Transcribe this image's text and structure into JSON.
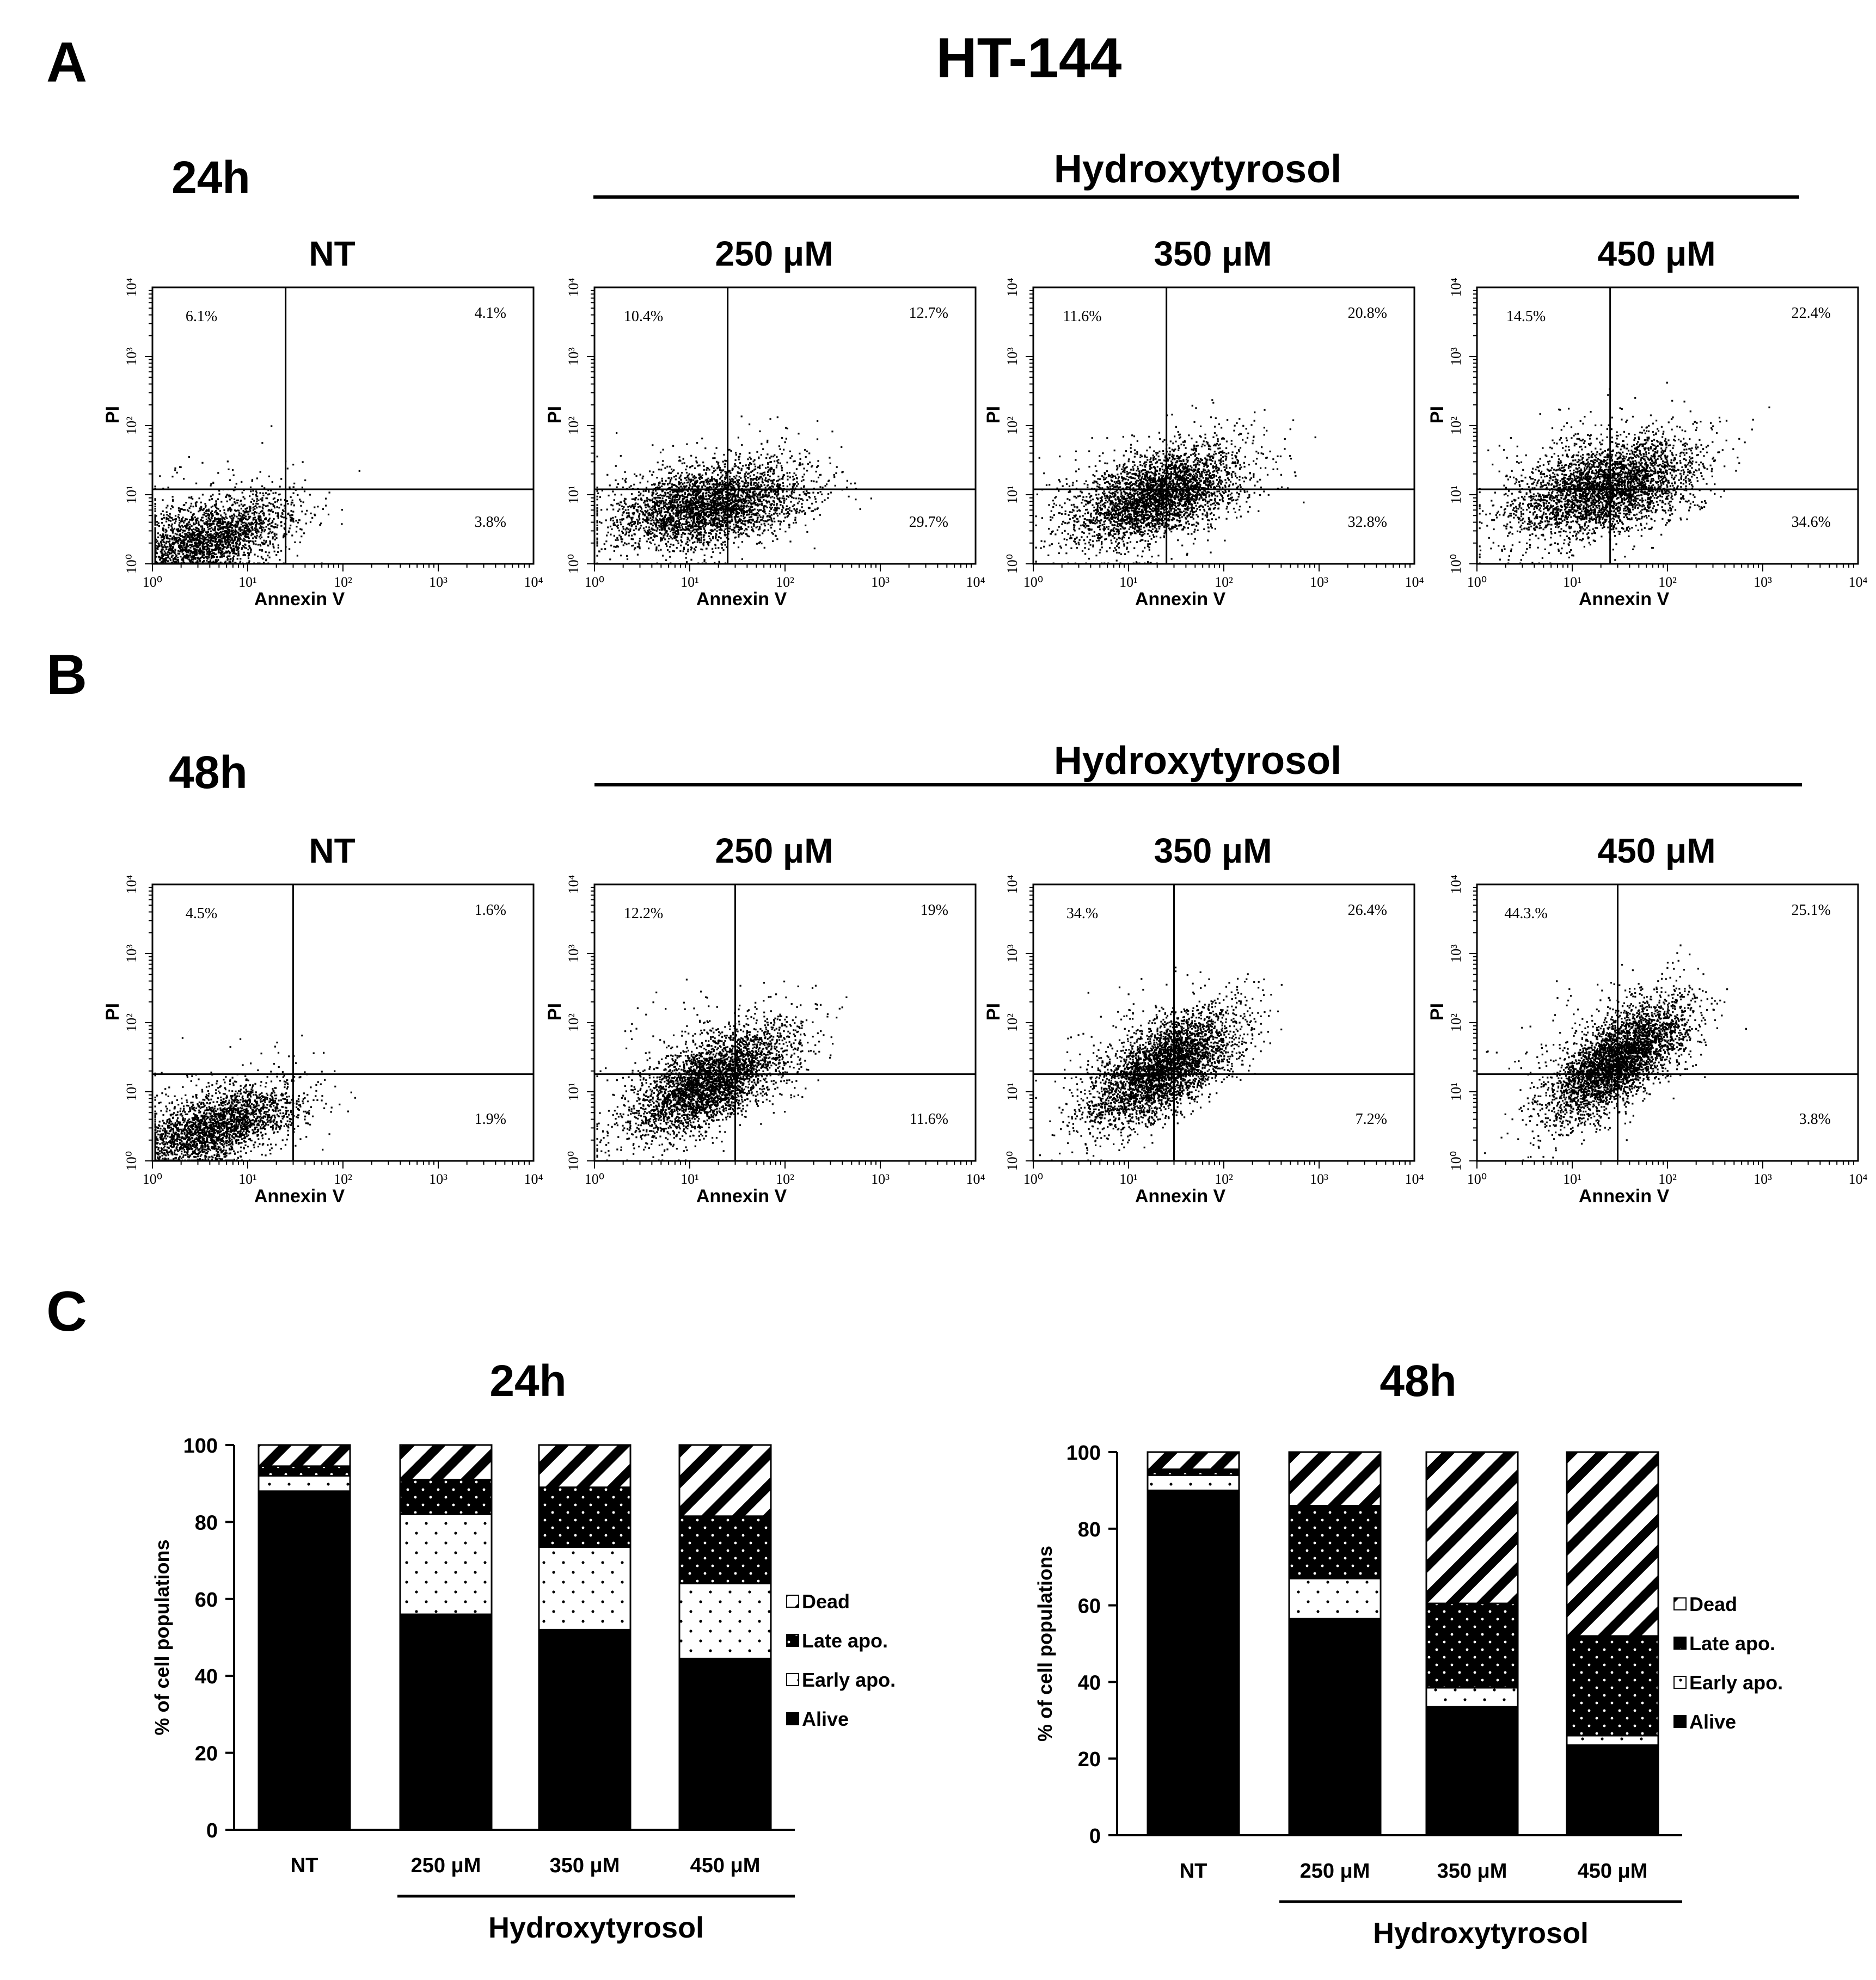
{
  "figure": {
    "title": "HT-144",
    "panels": {
      "a": "A",
      "b": "B",
      "c": "C"
    }
  },
  "flow": {
    "rows": [
      {
        "time": "24h",
        "treatment": "Hydroxytyrosol"
      },
      {
        "time": "48h",
        "treatment": "Hydroxytyrosol"
      }
    ]
  },
  "colors": {
    "ink": "#000000",
    "paper": "#ffffff"
  },
  "chart_data": [
    {
      "type": "scatter",
      "panel": "A",
      "time": "24h",
      "title": "NT",
      "xlabel": "Annexin V",
      "ylabel": "PI",
      "scale": "log",
      "xlim": [
        1,
        10000
      ],
      "ylim": [
        1,
        10000
      ],
      "xticks": [
        "10⁰",
        "10¹",
        "10²",
        "10³",
        "10⁴"
      ],
      "yticks": [
        "10⁰",
        "10¹",
        "10²",
        "10³",
        "10⁴"
      ],
      "gate": {
        "x": 25,
        "y": 12
      },
      "quadrants": {
        "ul": "6.1%",
        "ur": "4.1%",
        "lr": "3.8%"
      },
      "cloud": {
        "points": 2600,
        "cx": 0.55,
        "cy": 0.35,
        "sx": 0.45,
        "sy": 0.32,
        "rho": 0.55
      }
    },
    {
      "type": "scatter",
      "panel": "A",
      "time": "24h",
      "title": "250 μM",
      "xlabel": "Annexin V",
      "ylabel": "PI",
      "scale": "log",
      "xlim": [
        1,
        10000
      ],
      "ylim": [
        1,
        10000
      ],
      "xticks": [
        "10⁰",
        "10¹",
        "10²",
        "10³",
        "10⁴"
      ],
      "yticks": [
        "10⁰",
        "10¹",
        "10²",
        "10³",
        "10⁴"
      ],
      "gate": {
        "x": 25,
        "y": 12
      },
      "quadrants": {
        "ul": "10.4%",
        "ur": "12.7%",
        "lr": "29.7%"
      },
      "cloud": {
        "points": 3400,
        "cx": 1.2,
        "cy": 0.85,
        "sx": 0.5,
        "sy": 0.3,
        "rho": 0.35
      }
    },
    {
      "type": "scatter",
      "panel": "A",
      "time": "24h",
      "title": "350 μM",
      "xlabel": "Annexin V",
      "ylabel": "PI",
      "scale": "log",
      "xlim": [
        1,
        10000
      ],
      "ylim": [
        1,
        10000
      ],
      "xticks": [
        "10⁰",
        "10¹",
        "10²",
        "10³",
        "10⁴"
      ],
      "yticks": [
        "10⁰",
        "10¹",
        "10²",
        "10³",
        "10⁴"
      ],
      "gate": {
        "x": 25,
        "y": 12
      },
      "quadrants": {
        "ul": "11.6%",
        "ur": "20.8%",
        "lr": "32.8%"
      },
      "cloud": {
        "points": 3500,
        "cx": 1.3,
        "cy": 1.0,
        "sx": 0.45,
        "sy": 0.35,
        "rho": 0.5
      }
    },
    {
      "type": "scatter",
      "panel": "A",
      "time": "24h",
      "title": "450 μM",
      "xlabel": "Annexin V",
      "ylabel": "PI",
      "scale": "log",
      "xlim": [
        1,
        10000
      ],
      "ylim": [
        1,
        10000
      ],
      "xticks": [
        "10⁰",
        "10¹",
        "10²",
        "10³",
        "10⁴"
      ],
      "yticks": [
        "10⁰",
        "10¹",
        "10²",
        "10³",
        "10⁴"
      ],
      "gate": {
        "x": 25,
        "y": 12
      },
      "quadrants": {
        "ul": "14.5%",
        "ur": "22.4%",
        "lr": "34.6%"
      },
      "cloud": {
        "points": 3600,
        "cx": 1.35,
        "cy": 1.1,
        "sx": 0.48,
        "sy": 0.36,
        "rho": 0.45
      }
    },
    {
      "type": "scatter",
      "panel": "B",
      "time": "48h",
      "title": "NT",
      "xlabel": "Annexin V",
      "ylabel": "PI",
      "scale": "log",
      "xlim": [
        1,
        10000
      ],
      "ylim": [
        1,
        10000
      ],
      "xticks": [
        "10⁰",
        "10¹",
        "10²",
        "10³",
        "10⁴"
      ],
      "yticks": [
        "10⁰",
        "10¹",
        "10²",
        "10³",
        "10⁴"
      ],
      "gate": {
        "x": 30,
        "y": 18
      },
      "quadrants": {
        "ul": "4.5%",
        "ur": "1.6%",
        "lr": "1.9%"
      },
      "cloud": {
        "points": 2600,
        "cx": 0.65,
        "cy": 0.5,
        "sx": 0.42,
        "sy": 0.3,
        "rho": 0.6
      }
    },
    {
      "type": "scatter",
      "panel": "B",
      "time": "48h",
      "title": "250 μM",
      "xlabel": "Annexin V",
      "ylabel": "PI",
      "scale": "log",
      "xlim": [
        1,
        10000
      ],
      "ylim": [
        1,
        10000
      ],
      "xticks": [
        "10⁰",
        "10¹",
        "10²",
        "10³",
        "10⁴"
      ],
      "yticks": [
        "10⁰",
        "10¹",
        "10²",
        "10³",
        "10⁴"
      ],
      "gate": {
        "x": 30,
        "y": 18
      },
      "quadrants": {
        "ul": "12.2%",
        "ur": "19%",
        "lr": "11.6%"
      },
      "cloud": {
        "points": 3600,
        "cx": 1.2,
        "cy": 1.15,
        "sx": 0.42,
        "sy": 0.4,
        "rho": 0.65
      }
    },
    {
      "type": "scatter",
      "panel": "B",
      "time": "48h",
      "title": "350 μM",
      "xlabel": "Annexin V",
      "ylabel": "PI",
      "scale": "log",
      "xlim": [
        1,
        10000
      ],
      "ylim": [
        1,
        10000
      ],
      "xticks": [
        "10⁰",
        "10¹",
        "10²",
        "10³",
        "10⁴"
      ],
      "yticks": [
        "10⁰",
        "10¹",
        "10²",
        "10³",
        "10⁴"
      ],
      "gate": {
        "x": 30,
        "y": 18
      },
      "quadrants": {
        "ul": "34.%",
        "ur": "26.4%",
        "lr": "7.2%"
      },
      "cloud": {
        "points": 3800,
        "cx": 1.35,
        "cy": 1.35,
        "sx": 0.38,
        "sy": 0.42,
        "rho": 0.65
      }
    },
    {
      "type": "scatter",
      "panel": "B",
      "time": "48h",
      "title": "450 μM",
      "xlabel": "Annexin V",
      "ylabel": "PI",
      "scale": "log",
      "xlim": [
        1,
        10000
      ],
      "ylim": [
        1,
        10000
      ],
      "xticks": [
        "10⁰",
        "10¹",
        "10²",
        "10³",
        "10⁴"
      ],
      "yticks": [
        "10⁰",
        "10¹",
        "10²",
        "10³",
        "10⁴"
      ],
      "gate": {
        "x": 30,
        "y": 18
      },
      "quadrants": {
        "ul": "44.3.%",
        "ur": "25.1%",
        "lr": "3.8%"
      },
      "cloud": {
        "points": 3900,
        "cx": 1.45,
        "cy": 1.45,
        "sx": 0.36,
        "sy": 0.42,
        "rho": 0.7
      }
    },
    {
      "type": "bar",
      "stacked": true,
      "panel": "C",
      "title": "24h",
      "categories": [
        "NT",
        "250 μM",
        "350 μM",
        "450 μM"
      ],
      "group_label": "Hydroxytyrosol",
      "ylabel": "% of cell populations",
      "ylim": [
        0,
        100
      ],
      "yticks": [
        0,
        20,
        40,
        60,
        80,
        100
      ],
      "series": [
        {
          "name": "Alive",
          "pattern": "solid",
          "values": [
            88,
            56,
            52,
            44.5
          ]
        },
        {
          "name": "Early apo.",
          "pattern": "dots",
          "values": [
            4,
            26,
            21.5,
            19.5
          ]
        },
        {
          "name": "Late apo.",
          "pattern": "dense",
          "values": [
            2.5,
            9,
            15.5,
            17.5
          ]
        },
        {
          "name": "Dead",
          "pattern": "hatch",
          "values": [
            5.5,
            9,
            11,
            18.5
          ]
        }
      ]
    },
    {
      "type": "bar",
      "stacked": true,
      "panel": "C",
      "title": "48h",
      "categories": [
        "NT",
        "250 μM",
        "350 μM",
        "450 μM"
      ],
      "group_label": "Hydroxytyrosol",
      "ylabel": "% of cell populations",
      "ylim": [
        0,
        100
      ],
      "yticks": [
        0,
        20,
        40,
        60,
        80,
        100
      ],
      "series": [
        {
          "name": "Alive",
          "pattern": "solid",
          "values": [
            90,
            56.5,
            33.5,
            23.5
          ]
        },
        {
          "name": "Early apo.",
          "pattern": "dots",
          "values": [
            4,
            10.5,
            5,
            2.5
          ]
        },
        {
          "name": "Late apo.",
          "pattern": "dense",
          "values": [
            1.5,
            19,
            22,
            26
          ]
        },
        {
          "name": "Dead",
          "pattern": "hatch",
          "values": [
            4.5,
            14,
            39.5,
            48
          ]
        }
      ]
    }
  ]
}
